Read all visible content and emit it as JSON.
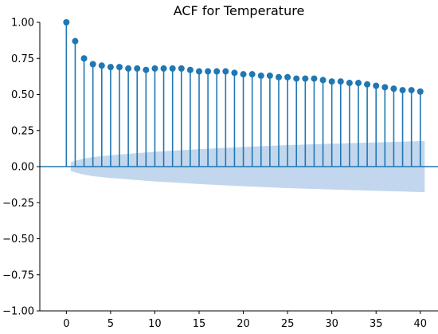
{
  "chart_data": {
    "type": "stem",
    "title": "ACF for Temperature",
    "xlabel": "",
    "ylabel": "",
    "xlim": [
      -3,
      42
    ],
    "ylim": [
      -1.0,
      1.0
    ],
    "grid": false,
    "legend": "none",
    "xticks": [
      0,
      5,
      10,
      15,
      20,
      25,
      30,
      35,
      40
    ],
    "xtick_labels": [
      "0",
      "5",
      "10",
      "15",
      "20",
      "25",
      "30",
      "35",
      "40"
    ],
    "yticks": [
      1.0,
      0.75,
      0.5,
      0.25,
      0.0,
      -0.25,
      -0.5,
      -0.75,
      -1.0
    ],
    "ytick_labels": [
      "1.00",
      "0.75",
      "0.50",
      "0.25",
      "0.00",
      "−0.25",
      "−0.50",
      "−0.75",
      "−1.00"
    ],
    "series": [
      {
        "x": [
          0,
          1,
          2,
          3,
          4,
          5,
          6,
          7,
          8,
          9,
          10,
          11,
          12,
          13,
          14,
          15,
          16,
          17,
          18,
          19,
          20,
          21,
          22,
          23,
          24,
          25,
          26,
          27,
          28,
          29,
          30,
          31,
          32,
          33,
          34,
          35,
          36,
          37,
          38,
          39,
          40
        ],
        "y": [
          1.0,
          0.87,
          0.75,
          0.71,
          0.7,
          0.69,
          0.69,
          0.68,
          0.68,
          0.67,
          0.68,
          0.68,
          0.68,
          0.68,
          0.67,
          0.66,
          0.66,
          0.66,
          0.66,
          0.65,
          0.64,
          0.64,
          0.63,
          0.63,
          0.62,
          0.62,
          0.61,
          0.61,
          0.61,
          0.6,
          0.59,
          0.59,
          0.58,
          0.58,
          0.57,
          0.56,
          0.55,
          0.54,
          0.53,
          0.53,
          0.52
        ]
      }
    ],
    "confidence_band": {
      "x": [
        0.5,
        1,
        2,
        3,
        5,
        10,
        15,
        20,
        25,
        30,
        35,
        40,
        40.5
      ],
      "upper": [
        0.03,
        0.04,
        0.056,
        0.066,
        0.079,
        0.103,
        0.121,
        0.136,
        0.149,
        0.159,
        0.168,
        0.176,
        0.177
      ]
    },
    "colors": {
      "stem": "#1f77b4",
      "baseline": "#1f77b4",
      "band": "#aac8e6",
      "axis": "#000000"
    }
  }
}
